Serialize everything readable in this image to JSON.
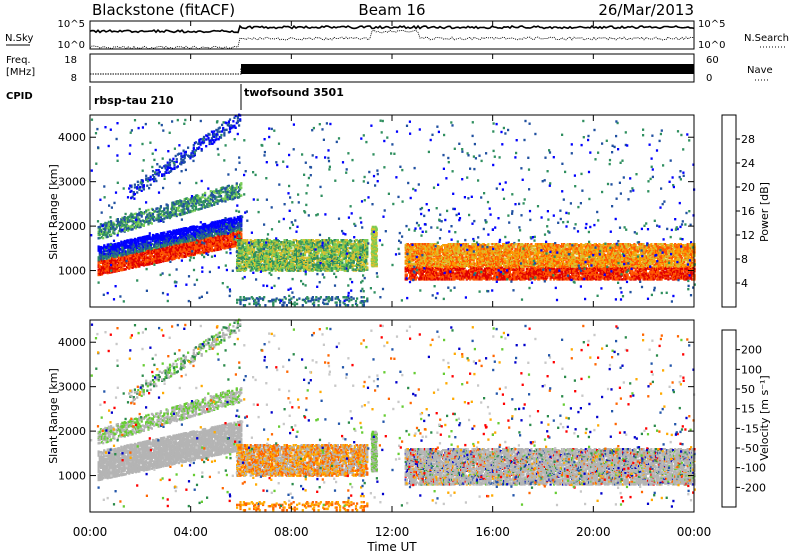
{
  "header": {
    "station": "Blackstone (fitACF)",
    "beam": "Beam 16",
    "date": "26/Mar/2013"
  },
  "panels": {
    "nsky": {
      "left_label": "N.Sky",
      "right_label": "N.Search",
      "ticks_left": [
        "10^5",
        "10^0"
      ],
      "ticks_right": [
        "10^5",
        "10^0"
      ]
    },
    "freq": {
      "left_label_1": "Freq.",
      "left_label_2": "[MHz]",
      "right_label": "Nave",
      "ticks_left": [
        "18",
        "8"
      ],
      "ticks_right": [
        "60",
        "0"
      ]
    },
    "cpid": {
      "label": "CPID",
      "modes": [
        "rbsp-tau 210",
        "twofsound 3501"
      ]
    }
  },
  "colors": {
    "power_scale": [
      "#0000ff",
      "#2050a0",
      "#2f8f5f",
      "#77cc55",
      "#d8c030",
      "#ff9900",
      "#ff5500",
      "#e00000"
    ],
    "velocity_scale": [
      "#ff0000",
      "#ff6600",
      "#ffaa00",
      "#c8c8c8",
      "#c8c8c8",
      "#66cc33",
      "#2a8a4a",
      "#2255aa",
      "#0000cc"
    ],
    "ground_scatter": "#b4b4b4"
  },
  "chart_data": [
    {
      "type": "heatmap",
      "title": "",
      "xlabel": "",
      "ylabel": "Slant Range [km]",
      "x_ticks": [
        "00:00",
        "04:00",
        "08:00",
        "12:00",
        "16:00",
        "20:00",
        "00:00"
      ],
      "y_ticks": [
        "1000",
        "2000",
        "3000",
        "4000"
      ],
      "xlim_hours": [
        0,
        24
      ],
      "ylim_km": [
        180,
        4500
      ],
      "colorbar": {
        "label": "Power [dB]",
        "ticks": [
          "4",
          "8",
          "12",
          "16",
          "20",
          "24",
          "28"
        ],
        "range": [
          0,
          32
        ]
      },
      "scatter_regions_approx": [
        {
          "x": [
            0.3,
            6.0
          ],
          "y": [
            800,
            2500
          ],
          "note": "rising band"
        },
        {
          "x": [
            5.8,
            11.0
          ],
          "y": [
            1000,
            1700
          ]
        },
        {
          "x": [
            12.5,
            24.0
          ],
          "y": [
            800,
            1600
          ]
        }
      ]
    },
    {
      "type": "heatmap",
      "title": "",
      "xlabel": "Time UT",
      "ylabel": "Slant Range [km]",
      "x_ticks": [
        "00:00",
        "04:00",
        "08:00",
        "12:00",
        "16:00",
        "20:00",
        "00:00"
      ],
      "y_ticks": [
        "1000",
        "2000",
        "3000",
        "4000"
      ],
      "xlim_hours": [
        0,
        24
      ],
      "ylim_km": [
        180,
        4500
      ],
      "colorbar": {
        "label": "Velocity [m s⁻¹]",
        "ticks": [
          "200",
          "100",
          "50",
          "15",
          "-15",
          "-50",
          "-100",
          "-200"
        ],
        "range": [
          -250,
          250
        ]
      }
    }
  ]
}
